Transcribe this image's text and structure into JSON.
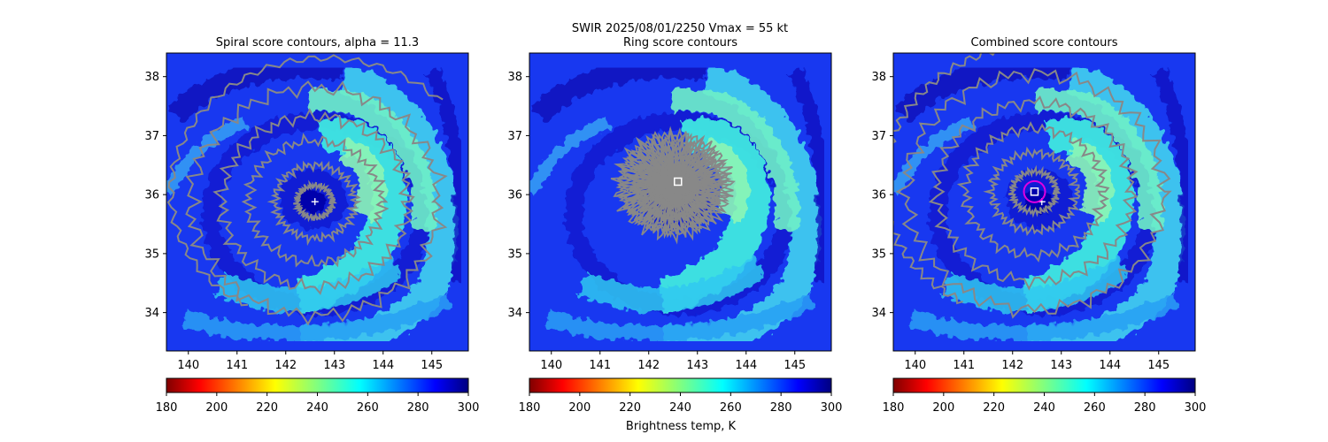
{
  "suptitle": "SWIR  2025/08/01/2250    Vmax = 55 kt",
  "colorbar_label": "Brightness temp, K",
  "chart_data": [
    {
      "type": "heatmap",
      "title": "Spiral score contours, alpha = 11.3",
      "xlim": [
        139.55,
        145.75
      ],
      "ylim": [
        33.35,
        38.4
      ],
      "x_ticks": [
        "140",
        "141",
        "142",
        "143",
        "144",
        "145"
      ],
      "y_ticks": [
        "34",
        "35",
        "36",
        "37",
        "38"
      ],
      "center": [
        142.6,
        35.88
      ],
      "markers": [
        {
          "kind": "plus",
          "lon": 142.6,
          "lat": 35.88,
          "color": "#ffffff"
        }
      ],
      "contour_color": "#888888"
    },
    {
      "type": "heatmap",
      "title": "Ring score contours",
      "xlim": [
        139.55,
        145.75
      ],
      "ylim": [
        33.35,
        38.4
      ],
      "x_ticks": [
        "140",
        "141",
        "142",
        "143",
        "144",
        "145"
      ],
      "y_ticks": [
        "34",
        "35",
        "36",
        "37",
        "38"
      ],
      "center": [
        142.6,
        36.2
      ],
      "markers": [
        {
          "kind": "square",
          "lon": 142.6,
          "lat": 36.22,
          "color": "#ffffff"
        }
      ],
      "contour_color": "#888888"
    },
    {
      "type": "heatmap",
      "title": "Combined score contours",
      "xlim": [
        139.55,
        145.75
      ],
      "ylim": [
        33.35,
        38.4
      ],
      "x_ticks": [
        "140",
        "141",
        "142",
        "143",
        "144",
        "145"
      ],
      "y_ticks": [
        "34",
        "35",
        "36",
        "37",
        "38"
      ],
      "center": [
        142.45,
        36.05
      ],
      "markers": [
        {
          "kind": "plus",
          "lon": 142.6,
          "lat": 35.88,
          "color": "#ffffff"
        },
        {
          "kind": "square",
          "lon": 142.45,
          "lat": 36.05,
          "color": "#ffffff"
        },
        {
          "kind": "circle",
          "lon": 142.45,
          "lat": 36.05,
          "color": "#e000e0"
        }
      ],
      "contour_color": "#888888"
    }
  ],
  "colorbar": {
    "vmin": 180,
    "vmax": 300,
    "cmap": "jet_r",
    "ticks": [
      "180",
      "200",
      "220",
      "240",
      "260",
      "280",
      "300"
    ]
  }
}
